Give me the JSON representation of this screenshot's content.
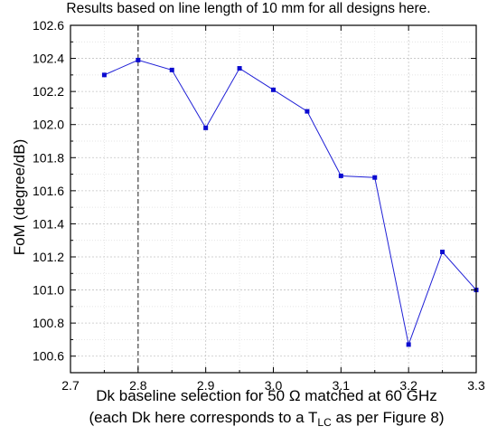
{
  "chart_data": {
    "type": "line",
    "title": "Results based on line length of 10 mm for all designs here.",
    "xlabel": "Dk baseline selection for 50 Ω matched at 60 GHz",
    "xlabel_line2_prefix": "(each Dk here corresponds to a T",
    "xlabel_line2_sub": "LC",
    "xlabel_line2_suffix": " as per Figure 8)",
    "ylabel": "FoM (degree/dB)",
    "xlim": [
      2.7,
      3.3
    ],
    "ylim": [
      100.5,
      102.6
    ],
    "xticks": [
      "2.7",
      "2.8",
      "2.9",
      "3.0",
      "3.1",
      "3.2",
      "3.3"
    ],
    "yticks": [
      "100.6",
      "100.8",
      "101.0",
      "101.2",
      "101.4",
      "101.6",
      "101.8",
      "102.0",
      "102.2",
      "102.4",
      "102.6"
    ],
    "grid": true,
    "line_color": "#1f1fd6",
    "reference_line_x": 2.8,
    "x": [
      2.75,
      2.8,
      2.85,
      2.9,
      2.95,
      3.0,
      3.05,
      3.1,
      3.15,
      3.2,
      3.25,
      3.3
    ],
    "y": [
      102.3,
      102.39,
      102.33,
      101.98,
      102.34,
      102.21,
      102.08,
      101.69,
      101.68,
      100.67,
      101.23,
      101.0
    ]
  }
}
